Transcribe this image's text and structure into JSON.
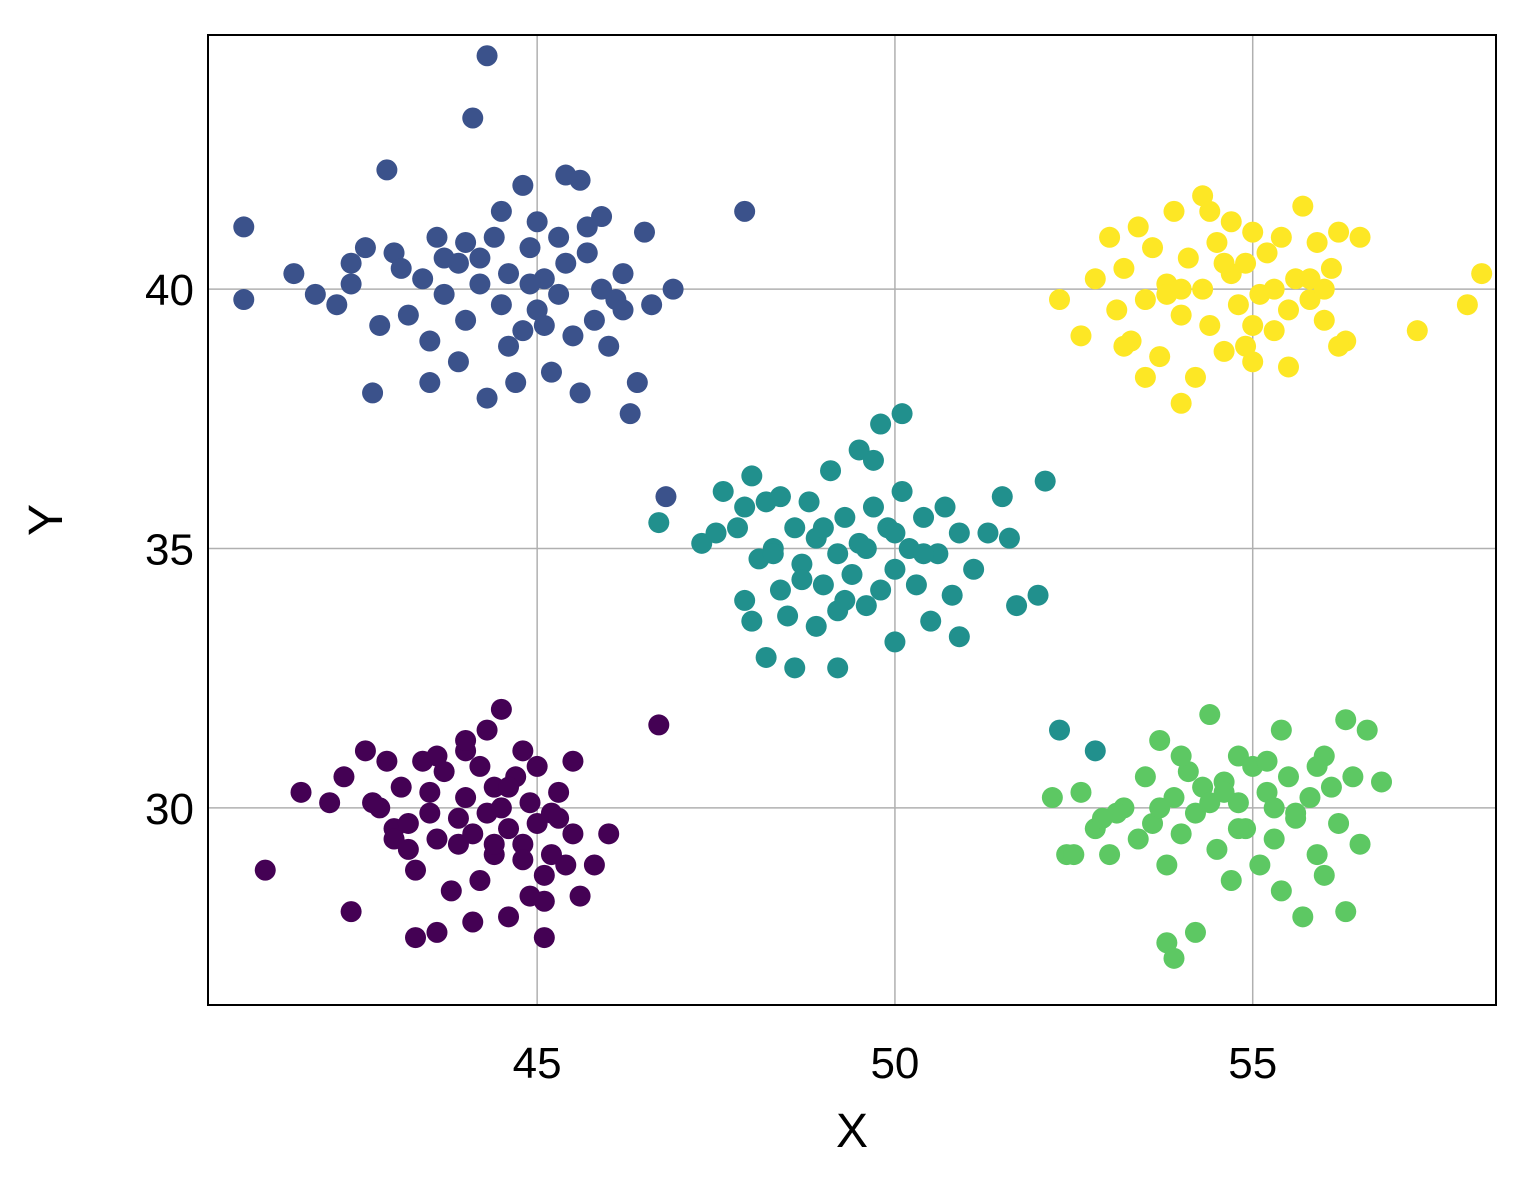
{
  "chart_data": {
    "type": "scatter",
    "title": "",
    "xlabel": "X",
    "ylabel": "Y",
    "xlim": [
      40.4,
      58.4
    ],
    "ylim": [
      26.2,
      44.9
    ],
    "xticks": [
      45,
      50,
      55
    ],
    "yticks": [
      30,
      35,
      40
    ],
    "grid": true,
    "legend": "none",
    "series": [
      {
        "color": "#440154",
        "points": [
          [
            41.2,
            28.8
          ],
          [
            41.7,
            30.3
          ],
          [
            42.1,
            30.1
          ],
          [
            42.3,
            30.6
          ],
          [
            42.4,
            28.0
          ],
          [
            42.6,
            31.1
          ],
          [
            42.8,
            30.0
          ],
          [
            43.0,
            29.6
          ],
          [
            43.1,
            30.4
          ],
          [
            43.2,
            29.2
          ],
          [
            43.3,
            28.8
          ],
          [
            43.4,
            30.9
          ],
          [
            43.5,
            29.9
          ],
          [
            43.6,
            29.4
          ],
          [
            43.7,
            30.7
          ],
          [
            43.8,
            28.4
          ],
          [
            43.9,
            29.8
          ],
          [
            44.0,
            31.1
          ],
          [
            44.0,
            30.2
          ],
          [
            44.1,
            29.5
          ],
          [
            44.2,
            30.8
          ],
          [
            44.2,
            28.6
          ],
          [
            44.3,
            31.5
          ],
          [
            44.3,
            29.9
          ],
          [
            44.4,
            30.4
          ],
          [
            44.4,
            29.1
          ],
          [
            44.5,
            30.0
          ],
          [
            44.5,
            31.9
          ],
          [
            44.6,
            29.6
          ],
          [
            44.6,
            27.9
          ],
          [
            44.7,
            30.6
          ],
          [
            44.8,
            29.3
          ],
          [
            44.8,
            31.1
          ],
          [
            44.9,
            28.3
          ],
          [
            44.9,
            30.1
          ],
          [
            45.0,
            29.7
          ],
          [
            45.0,
            30.8
          ],
          [
            45.1,
            28.7
          ],
          [
            45.1,
            27.5
          ],
          [
            45.2,
            29.9
          ],
          [
            45.3,
            30.3
          ],
          [
            45.4,
            28.9
          ],
          [
            45.5,
            29.5
          ],
          [
            45.6,
            28.3
          ],
          [
            45.8,
            28.9
          ],
          [
            46.0,
            29.5
          ],
          [
            43.6,
            27.6
          ],
          [
            43.3,
            27.5
          ],
          [
            44.1,
            27.8
          ],
          [
            45.1,
            28.2
          ],
          [
            42.7,
            30.1
          ],
          [
            43.5,
            30.3
          ],
          [
            44.6,
            30.4
          ],
          [
            43.9,
            29.3
          ],
          [
            43.0,
            29.4
          ],
          [
            44.0,
            31.3
          ],
          [
            43.6,
            31.0
          ],
          [
            42.9,
            30.9
          ],
          [
            45.3,
            29.8
          ],
          [
            44.8,
            29.0
          ],
          [
            45.5,
            30.9
          ],
          [
            43.2,
            29.7
          ],
          [
            44.4,
            29.3
          ],
          [
            45.2,
            29.1
          ],
          [
            46.7,
            31.6
          ]
        ]
      },
      {
        "color": "#3b528b",
        "points": [
          [
            40.9,
            41.2
          ],
          [
            40.9,
            39.8
          ],
          [
            41.6,
            40.3
          ],
          [
            41.9,
            39.9
          ],
          [
            42.2,
            39.7
          ],
          [
            42.4,
            40.1
          ],
          [
            42.6,
            40.8
          ],
          [
            42.7,
            38.0
          ],
          [
            42.9,
            42.3
          ],
          [
            43.0,
            40.7
          ],
          [
            43.2,
            39.5
          ],
          [
            43.4,
            40.2
          ],
          [
            43.5,
            38.2
          ],
          [
            43.6,
            41.0
          ],
          [
            43.7,
            39.9
          ],
          [
            43.9,
            40.5
          ],
          [
            43.9,
            38.6
          ],
          [
            44.0,
            39.4
          ],
          [
            44.1,
            43.3
          ],
          [
            44.2,
            40.1
          ],
          [
            44.3,
            37.9
          ],
          [
            44.4,
            41.0
          ],
          [
            44.5,
            39.7
          ],
          [
            44.6,
            40.3
          ],
          [
            44.7,
            38.2
          ],
          [
            44.8,
            42.0
          ],
          [
            44.8,
            39.2
          ],
          [
            44.9,
            40.8
          ],
          [
            45.0,
            41.3
          ],
          [
            45.0,
            39.6
          ],
          [
            45.1,
            40.2
          ],
          [
            45.2,
            38.4
          ],
          [
            45.3,
            39.9
          ],
          [
            45.3,
            41.0
          ],
          [
            45.4,
            40.5
          ],
          [
            45.5,
            39.1
          ],
          [
            45.6,
            42.1
          ],
          [
            45.7,
            40.7
          ],
          [
            45.8,
            39.4
          ],
          [
            45.9,
            41.4
          ],
          [
            46.0,
            38.9
          ],
          [
            46.1,
            39.8
          ],
          [
            46.2,
            40.3
          ],
          [
            46.3,
            37.6
          ],
          [
            46.4,
            38.2
          ],
          [
            46.5,
            41.1
          ],
          [
            46.6,
            39.7
          ],
          [
            44.3,
            44.5
          ],
          [
            45.9,
            40.0
          ],
          [
            46.9,
            40.0
          ],
          [
            47.9,
            41.5
          ],
          [
            42.8,
            39.3
          ],
          [
            43.5,
            39.0
          ],
          [
            44.5,
            41.5
          ],
          [
            45.4,
            42.2
          ],
          [
            43.1,
            40.4
          ],
          [
            44.0,
            40.9
          ],
          [
            44.6,
            38.9
          ],
          [
            45.7,
            41.2
          ],
          [
            43.7,
            40.6
          ],
          [
            44.9,
            40.1
          ],
          [
            42.4,
            40.5
          ],
          [
            45.6,
            38.0
          ],
          [
            46.2,
            39.6
          ],
          [
            45.1,
            39.3
          ],
          [
            44.2,
            40.6
          ],
          [
            46.8,
            36.0
          ]
        ]
      },
      {
        "color": "#21908d",
        "points": [
          [
            46.7,
            35.5
          ],
          [
            47.3,
            35.1
          ],
          [
            47.6,
            36.1
          ],
          [
            47.8,
            35.4
          ],
          [
            47.9,
            34.0
          ],
          [
            48.0,
            36.4
          ],
          [
            48.1,
            34.8
          ],
          [
            48.2,
            35.9
          ],
          [
            48.2,
            32.9
          ],
          [
            48.3,
            35.0
          ],
          [
            48.4,
            34.2
          ],
          [
            48.4,
            36.0
          ],
          [
            48.5,
            33.7
          ],
          [
            48.6,
            35.4
          ],
          [
            48.7,
            34.7
          ],
          [
            48.8,
            35.9
          ],
          [
            48.9,
            33.5
          ],
          [
            48.9,
            35.2
          ],
          [
            49.0,
            34.3
          ],
          [
            49.1,
            36.5
          ],
          [
            49.2,
            34.9
          ],
          [
            49.2,
            33.8
          ],
          [
            49.3,
            35.6
          ],
          [
            49.4,
            34.5
          ],
          [
            49.5,
            36.9
          ],
          [
            49.5,
            35.1
          ],
          [
            49.6,
            33.9
          ],
          [
            49.7,
            35.8
          ],
          [
            49.8,
            34.2
          ],
          [
            49.8,
            37.4
          ],
          [
            49.9,
            35.4
          ],
          [
            50.0,
            34.6
          ],
          [
            50.0,
            33.2
          ],
          [
            50.1,
            36.1
          ],
          [
            50.2,
            35.0
          ],
          [
            50.3,
            34.3
          ],
          [
            50.4,
            35.6
          ],
          [
            50.5,
            33.6
          ],
          [
            50.6,
            34.9
          ],
          [
            50.7,
            35.8
          ],
          [
            50.8,
            34.1
          ],
          [
            50.9,
            33.3
          ],
          [
            51.1,
            34.6
          ],
          [
            51.3,
            35.3
          ],
          [
            51.5,
            36.0
          ],
          [
            51.6,
            35.2
          ],
          [
            51.7,
            33.9
          ],
          [
            52.0,
            34.1
          ],
          [
            52.1,
            36.3
          ],
          [
            50.1,
            37.6
          ],
          [
            48.6,
            32.7
          ],
          [
            49.2,
            32.7
          ],
          [
            48.0,
            33.6
          ],
          [
            47.9,
            35.8
          ],
          [
            49.0,
            35.4
          ],
          [
            49.6,
            35.0
          ],
          [
            48.7,
            34.4
          ],
          [
            50.4,
            34.9
          ],
          [
            49.3,
            34.0
          ],
          [
            48.3,
            34.9
          ],
          [
            50.0,
            35.3
          ],
          [
            49.7,
            36.7
          ],
          [
            47.5,
            35.3
          ],
          [
            50.9,
            35.3
          ],
          [
            52.3,
            31.5
          ],
          [
            52.8,
            31.1
          ]
        ]
      },
      {
        "color": "#5dc863",
        "points": [
          [
            52.2,
            30.2
          ],
          [
            52.4,
            29.1
          ],
          [
            52.6,
            30.3
          ],
          [
            52.8,
            29.6
          ],
          [
            53.0,
            29.1
          ],
          [
            53.2,
            30.0
          ],
          [
            53.4,
            29.4
          ],
          [
            53.5,
            30.6
          ],
          [
            53.6,
            29.7
          ],
          [
            53.7,
            31.3
          ],
          [
            53.8,
            28.9
          ],
          [
            53.9,
            30.2
          ],
          [
            54.0,
            29.5
          ],
          [
            54.1,
            30.7
          ],
          [
            54.2,
            27.6
          ],
          [
            54.2,
            29.9
          ],
          [
            54.3,
            30.4
          ],
          [
            54.4,
            31.8
          ],
          [
            54.5,
            29.2
          ],
          [
            54.6,
            30.5
          ],
          [
            54.7,
            28.6
          ],
          [
            54.8,
            30.1
          ],
          [
            54.8,
            31.0
          ],
          [
            54.9,
            29.6
          ],
          [
            55.0,
            30.8
          ],
          [
            55.1,
            28.9
          ],
          [
            55.2,
            30.3
          ],
          [
            55.3,
            29.4
          ],
          [
            55.4,
            31.5
          ],
          [
            55.4,
            28.4
          ],
          [
            55.5,
            30.6
          ],
          [
            55.6,
            29.8
          ],
          [
            55.7,
            27.9
          ],
          [
            55.8,
            30.2
          ],
          [
            55.9,
            29.1
          ],
          [
            56.0,
            31.0
          ],
          [
            56.0,
            28.7
          ],
          [
            56.1,
            30.4
          ],
          [
            56.2,
            29.7
          ],
          [
            56.3,
            31.7
          ],
          [
            56.3,
            28.0
          ],
          [
            56.4,
            30.6
          ],
          [
            56.5,
            29.3
          ],
          [
            56.6,
            31.5
          ],
          [
            56.8,
            30.5
          ],
          [
            53.8,
            27.4
          ],
          [
            53.9,
            27.1
          ],
          [
            52.5,
            29.1
          ],
          [
            53.1,
            29.9
          ],
          [
            54.6,
            30.3
          ],
          [
            55.2,
            30.9
          ],
          [
            55.6,
            29.9
          ],
          [
            54.0,
            31.0
          ],
          [
            53.7,
            30.0
          ],
          [
            54.8,
            29.6
          ],
          [
            55.9,
            30.8
          ],
          [
            55.3,
            30.0
          ],
          [
            54.4,
            30.1
          ],
          [
            52.9,
            29.8
          ]
        ]
      },
      {
        "color": "#fde725",
        "points": [
          [
            52.3,
            39.8
          ],
          [
            52.6,
            39.1
          ],
          [
            52.8,
            40.2
          ],
          [
            53.0,
            41.0
          ],
          [
            53.1,
            39.6
          ],
          [
            53.2,
            40.4
          ],
          [
            53.3,
            39.0
          ],
          [
            53.4,
            41.2
          ],
          [
            53.5,
            39.8
          ],
          [
            53.6,
            40.8
          ],
          [
            53.7,
            38.7
          ],
          [
            53.8,
            40.1
          ],
          [
            53.9,
            41.5
          ],
          [
            54.0,
            39.5
          ],
          [
            54.1,
            40.6
          ],
          [
            54.2,
            38.3
          ],
          [
            54.3,
            40.0
          ],
          [
            54.3,
            41.8
          ],
          [
            54.4,
            39.3
          ],
          [
            54.5,
            40.9
          ],
          [
            54.6,
            38.8
          ],
          [
            54.7,
            40.3
          ],
          [
            54.7,
            41.3
          ],
          [
            54.8,
            39.7
          ],
          [
            54.9,
            40.5
          ],
          [
            55.0,
            38.6
          ],
          [
            55.0,
            41.1
          ],
          [
            55.1,
            39.9
          ],
          [
            55.2,
            40.7
          ],
          [
            55.3,
            39.2
          ],
          [
            55.4,
            41.0
          ],
          [
            55.5,
            39.6
          ],
          [
            55.6,
            40.2
          ],
          [
            55.7,
            41.6
          ],
          [
            55.8,
            39.8
          ],
          [
            55.9,
            40.9
          ],
          [
            56.0,
            39.4
          ],
          [
            56.1,
            40.4
          ],
          [
            56.2,
            41.1
          ],
          [
            56.3,
            39.0
          ],
          [
            56.5,
            41.0
          ],
          [
            56.2,
            38.9
          ],
          [
            57.3,
            39.2
          ],
          [
            58.2,
            40.3
          ],
          [
            58.0,
            39.7
          ],
          [
            54.0,
            37.8
          ],
          [
            53.5,
            38.3
          ],
          [
            54.9,
            38.9
          ],
          [
            54.4,
            41.5
          ],
          [
            55.3,
            40.0
          ],
          [
            53.8,
            39.9
          ],
          [
            55.0,
            39.3
          ],
          [
            54.6,
            40.5
          ],
          [
            55.8,
            40.2
          ],
          [
            54.0,
            40.0
          ],
          [
            53.2,
            38.9
          ],
          [
            55.5,
            38.5
          ],
          [
            56.0,
            40.0
          ]
        ]
      }
    ]
  },
  "axes_text": {
    "xlabel": "X",
    "ylabel": "Y",
    "xticks": [
      "45",
      "50",
      "55"
    ],
    "yticks": [
      "30",
      "35",
      "40"
    ]
  }
}
